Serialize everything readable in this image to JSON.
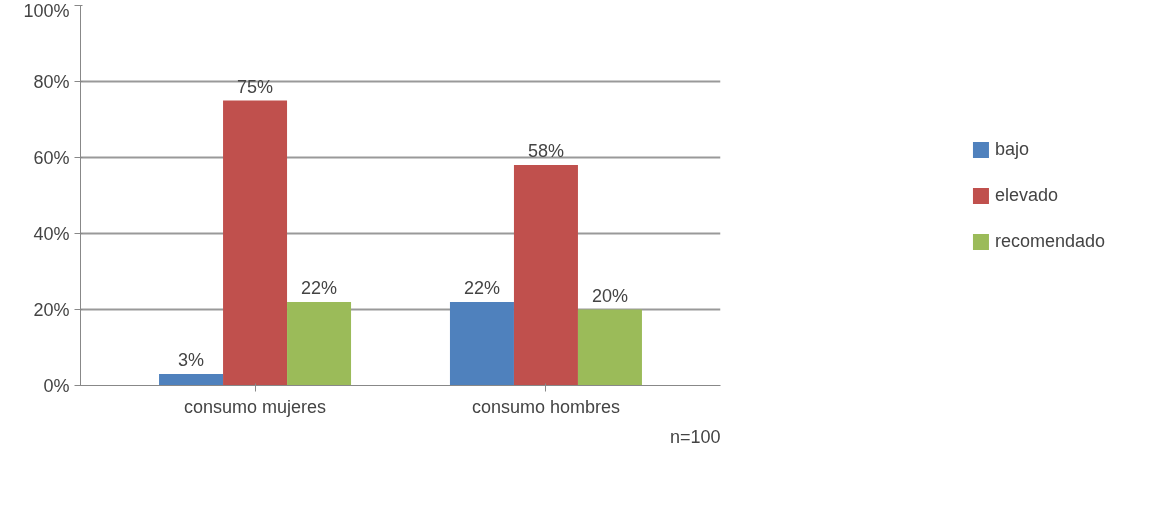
{
  "chart_data": {
    "type": "bar",
    "categories": [
      "consumo mujeres",
      "consumo hombres"
    ],
    "series": [
      {
        "name": "bajo",
        "color": "#4f81bd",
        "values": [
          3,
          22
        ],
        "value_labels": [
          "3%",
          "22%"
        ]
      },
      {
        "name": "elevado",
        "color": "#c0504d",
        "values": [
          75,
          58
        ],
        "value_labels": [
          "75%",
          "58%"
        ]
      },
      {
        "name": "recomendado",
        "color": "#9bbb59",
        "values": [
          22,
          20
        ],
        "value_labels": [
          "22%",
          "20%"
        ]
      }
    ],
    "ylim": [
      0,
      100
    ],
    "yticks": [
      {
        "value": 0,
        "label": "0%"
      },
      {
        "value": 20,
        "label": "20%"
      },
      {
        "value": 40,
        "label": "40%"
      },
      {
        "value": 60,
        "label": "60%"
      },
      {
        "value": 80,
        "label": "80%"
      },
      {
        "value": 100,
        "label": "100%"
      }
    ],
    "grid": "y",
    "legend": "right",
    "annotations": [
      "n=100"
    ]
  }
}
